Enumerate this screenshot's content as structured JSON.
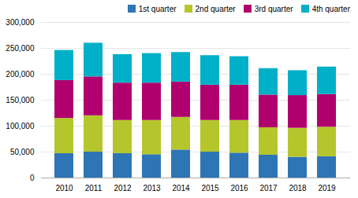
{
  "chart_data": {
    "type": "bar",
    "stacked": true,
    "categories": [
      "2010",
      "2011",
      "2012",
      "2013",
      "2014",
      "2015",
      "2016",
      "2017",
      "2018",
      "2019"
    ],
    "series": [
      {
        "name": "1st quarter",
        "color": "#2e75b6",
        "values": [
          47000,
          50000,
          47000,
          45000,
          54000,
          50000,
          48000,
          44000,
          40000,
          41000
        ]
      },
      {
        "name": "2nd quarter",
        "color": "#b4c62b",
        "values": [
          68000,
          70000,
          64000,
          66000,
          63000,
          61000,
          63000,
          53000,
          56000,
          57000
        ]
      },
      {
        "name": "3rd quarter",
        "color": "#b0006e",
        "values": [
          73000,
          75000,
          72000,
          72000,
          68000,
          68000,
          68000,
          63000,
          63000,
          63000
        ]
      },
      {
        "name": "4th quarter",
        "color": "#00b0c8",
        "values": [
          58000,
          65000,
          55000,
          57000,
          57000,
          57000,
          55000,
          51000,
          48000,
          53000
        ]
      }
    ],
    "ylim": [
      0,
      300000
    ],
    "yticks": [
      0,
      {
        "value": 50000,
        "label": "50,000"
      },
      {
        "value": 100000,
        "label": "100,000"
      },
      {
        "value": 150000,
        "label": "150,000"
      },
      {
        "value": 200000,
        "label": "200,000"
      },
      {
        "value": 250000,
        "label": "250,000"
      },
      {
        "value": 300000,
        "label": "300,000"
      }
    ],
    "grid": true,
    "legend": "upper right"
  }
}
